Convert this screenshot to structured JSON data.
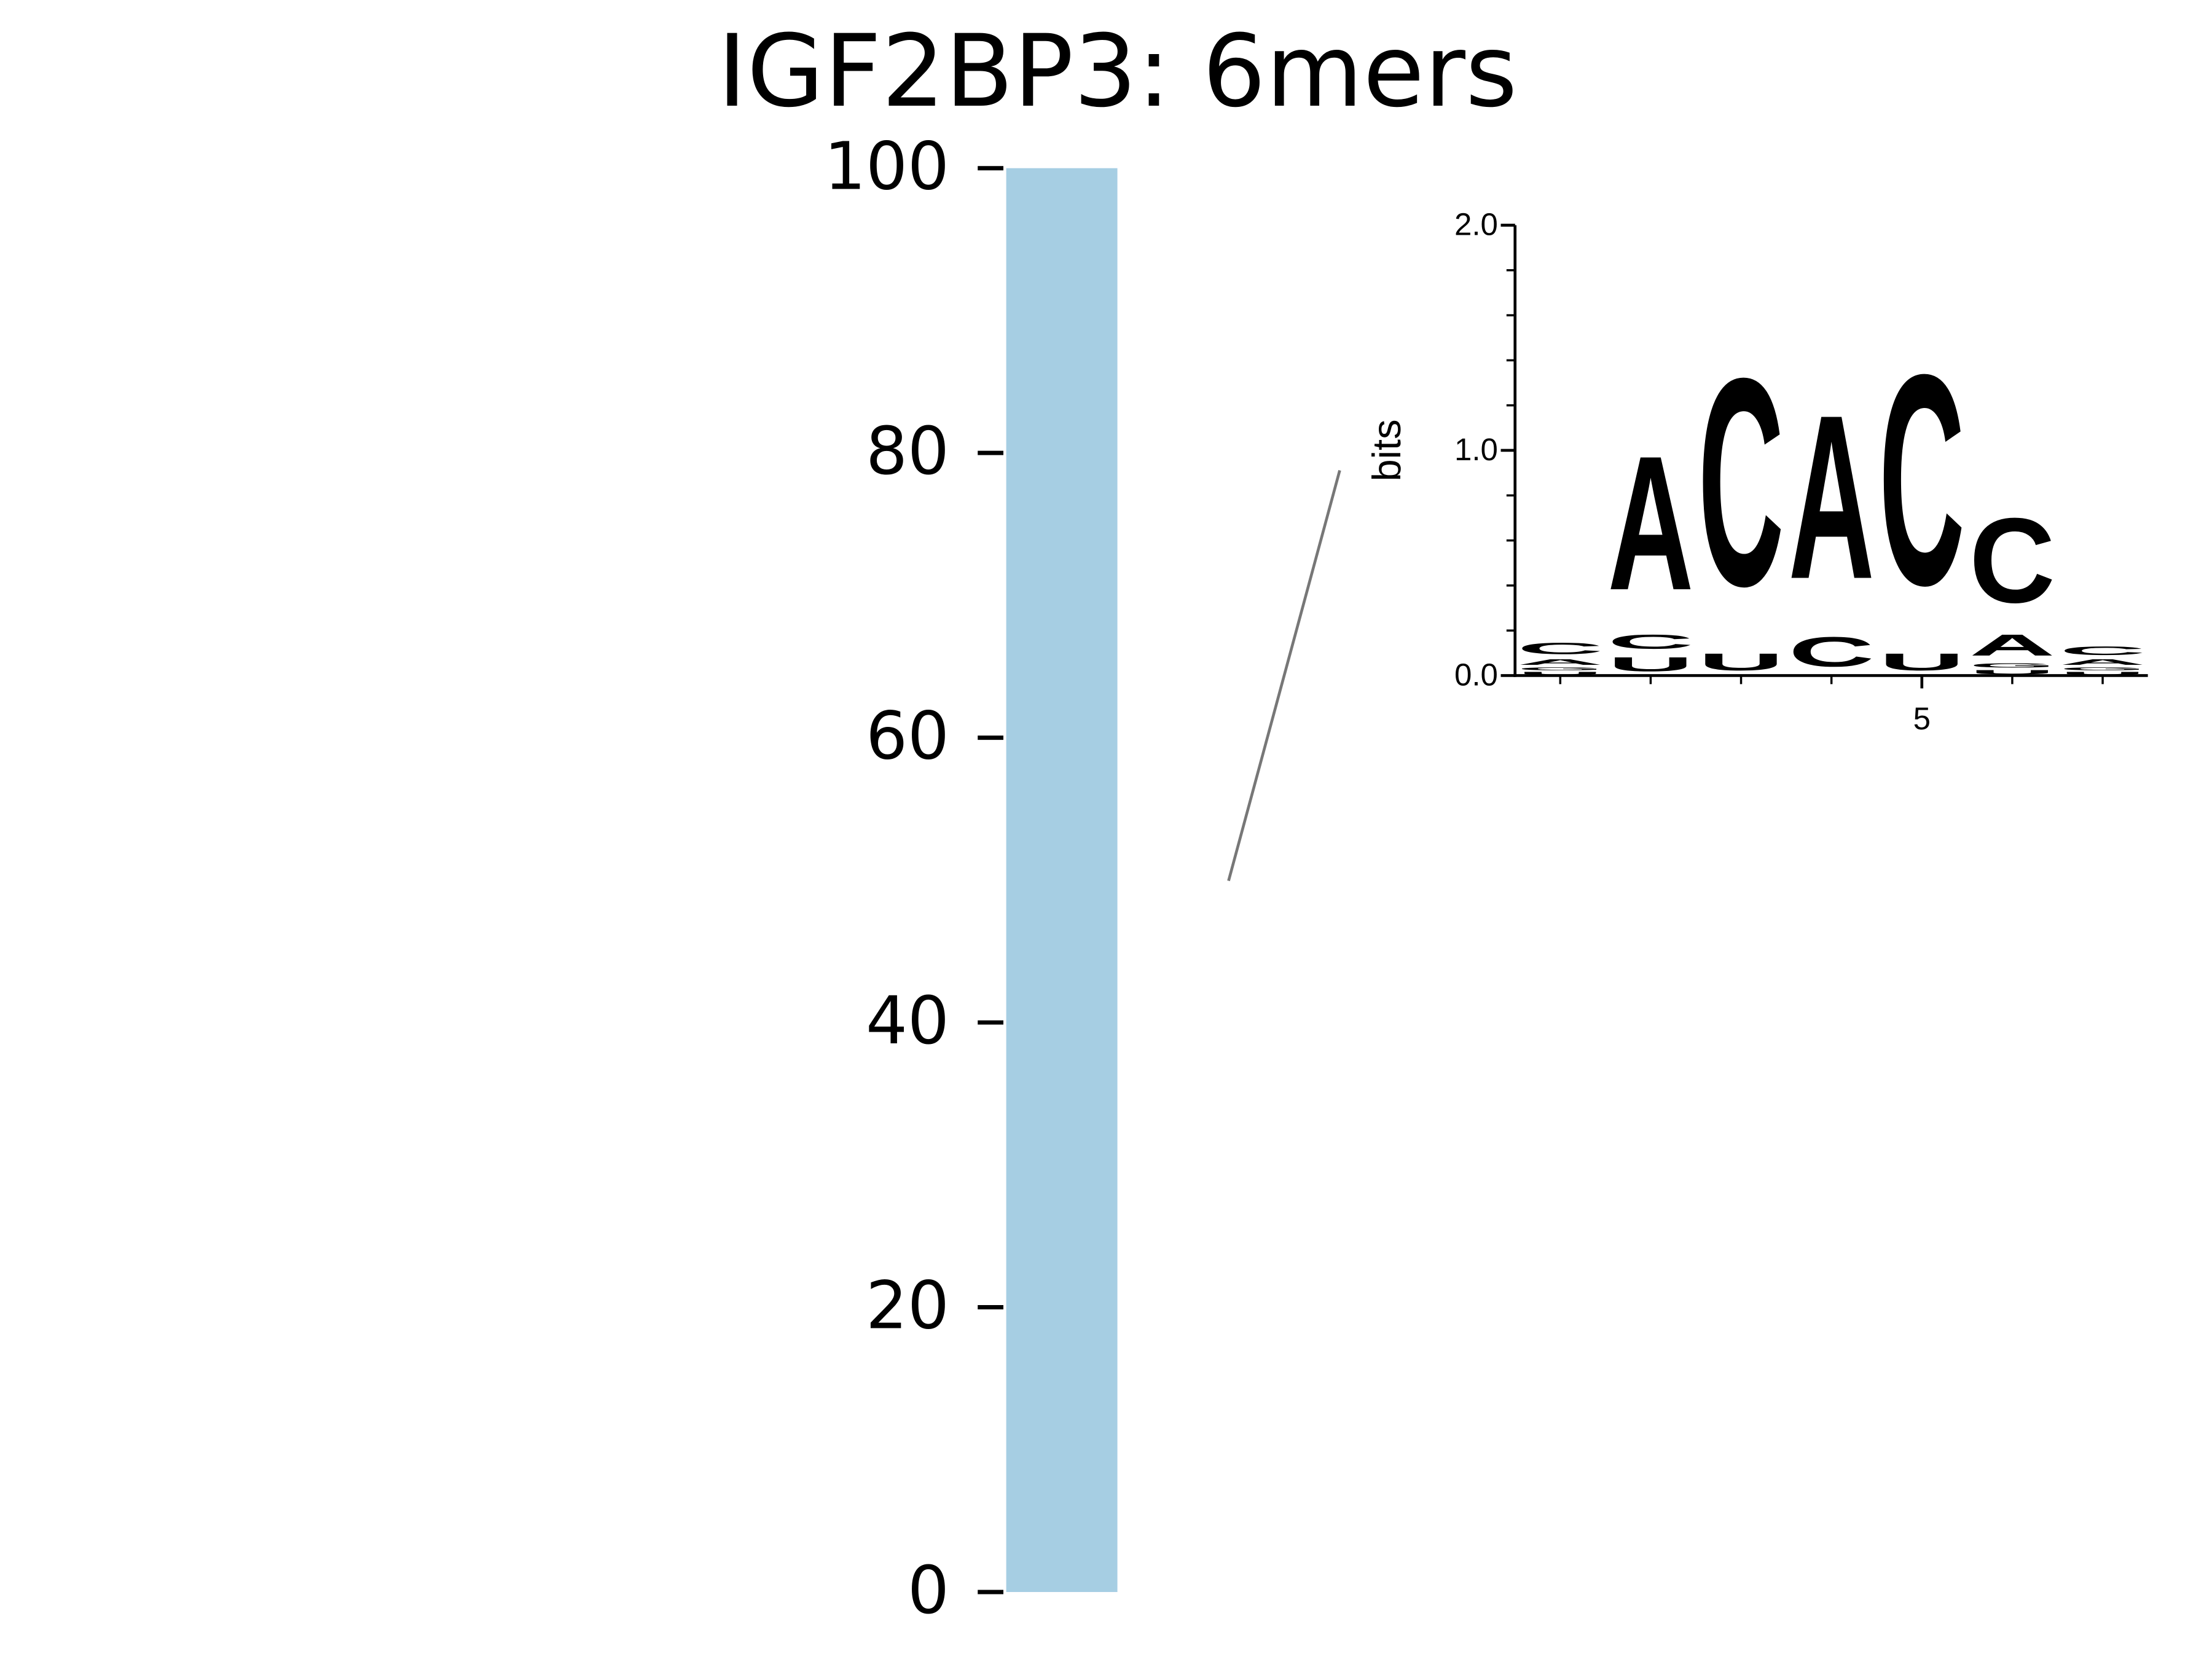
{
  "chart_data": [
    {
      "type": "bar",
      "title": "IGF2BP3: 6mers",
      "values": [
        100
      ],
      "color": "#a6cee3",
      "ylim": [
        0,
        100
      ],
      "yticks": [
        0,
        20,
        40,
        60,
        80,
        100
      ]
    },
    {
      "type": "logo",
      "ylabel": "bits",
      "ylim": [
        0,
        2
      ],
      "yticks": [
        {
          "value": 0,
          "label": "0.0"
        },
        {
          "value": 1,
          "label": "1.0"
        },
        {
          "value": 2,
          "label": "2.0"
        }
      ],
      "yminorticks": [
        0.2,
        0.4,
        0.6,
        0.8,
        1.2,
        1.4,
        1.6,
        1.8
      ],
      "xlim": [
        0.5,
        7.5
      ],
      "xticks": [
        5
      ],
      "xminorticks": [
        1,
        2,
        3,
        4,
        6,
        7
      ],
      "positions": [
        1,
        2,
        3,
        4,
        5,
        6,
        7
      ],
      "colors": {
        "A": "#008000",
        "C": "#0000ff",
        "G": "#ffa500",
        "U": "#ff0000"
      },
      "stacks": [
        {
          "letters": [
            "U",
            "G",
            "A",
            "C"
          ],
          "heights": [
            0.02,
            0.02,
            0.04,
            0.08
          ]
        },
        {
          "letters": [
            "U",
            "C",
            "A"
          ],
          "heights": [
            0.1,
            0.1,
            0.95
          ]
        },
        {
          "letters": [
            "U",
            "C"
          ],
          "heights": [
            0.12,
            1.47
          ]
        },
        {
          "letters": [
            "C",
            "A"
          ],
          "heights": [
            0.21,
            1.16
          ]
        },
        {
          "letters": [
            "U",
            "C"
          ],
          "heights": [
            0.12,
            1.49
          ]
        },
        {
          "letters": [
            "U",
            "G",
            "A",
            "C"
          ],
          "heights": [
            0.03,
            0.03,
            0.15,
            0.6
          ]
        },
        {
          "letters": [
            "U",
            "G",
            "A",
            "C"
          ],
          "heights": [
            0.02,
            0.02,
            0.04,
            0.06
          ]
        }
      ]
    }
  ]
}
